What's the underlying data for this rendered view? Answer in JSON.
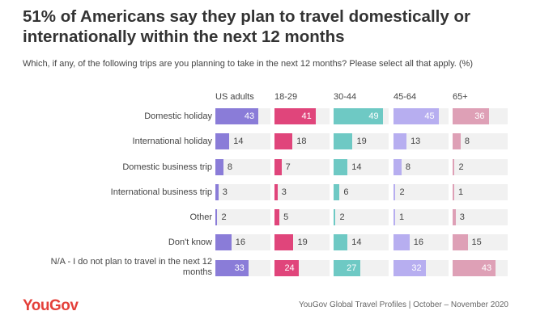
{
  "title": "51% of Americans say they plan to travel domestically or internationally within the next 12 months",
  "subtitle": "Which, if any, of the following trips are you planning to take in the next 12 months? Please select all that apply. (%)",
  "chart_data": {
    "type": "bar",
    "title": "51% of Americans say they plan to travel domestically or internationally within the next 12 months",
    "subtitle": "Which, if any, of the following trips are you planning to take in the next 12 months? Please select all that apply. (%)",
    "categories": [
      "Domestic holiday",
      "International holiday",
      "Domestic business trip",
      "International business trip",
      "Other",
      "Don't know",
      "N/A - I do not plan to travel in the next 12 months"
    ],
    "series": [
      {
        "name": "US adults",
        "color": "#8a7cd8",
        "values": [
          43,
          14,
          8,
          3,
          2,
          16,
          33
        ]
      },
      {
        "name": "18-29",
        "color": "#e0457b",
        "values": [
          41,
          18,
          7,
          3,
          5,
          19,
          24
        ]
      },
      {
        "name": "30-44",
        "color": "#6ec9c4",
        "values": [
          49,
          19,
          14,
          6,
          2,
          14,
          27
        ]
      },
      {
        "name": "45-64",
        "color": "#b7aef0",
        "values": [
          45,
          13,
          8,
          2,
          1,
          16,
          32
        ]
      },
      {
        "name": "65+",
        "color": "#dea0b6",
        "values": [
          36,
          8,
          2,
          1,
          3,
          15,
          43
        ]
      }
    ],
    "xlim": [
      0,
      55
    ]
  },
  "logo": "YouGov",
  "source": "YouGov Global Travel Profiles | October – November 2020"
}
